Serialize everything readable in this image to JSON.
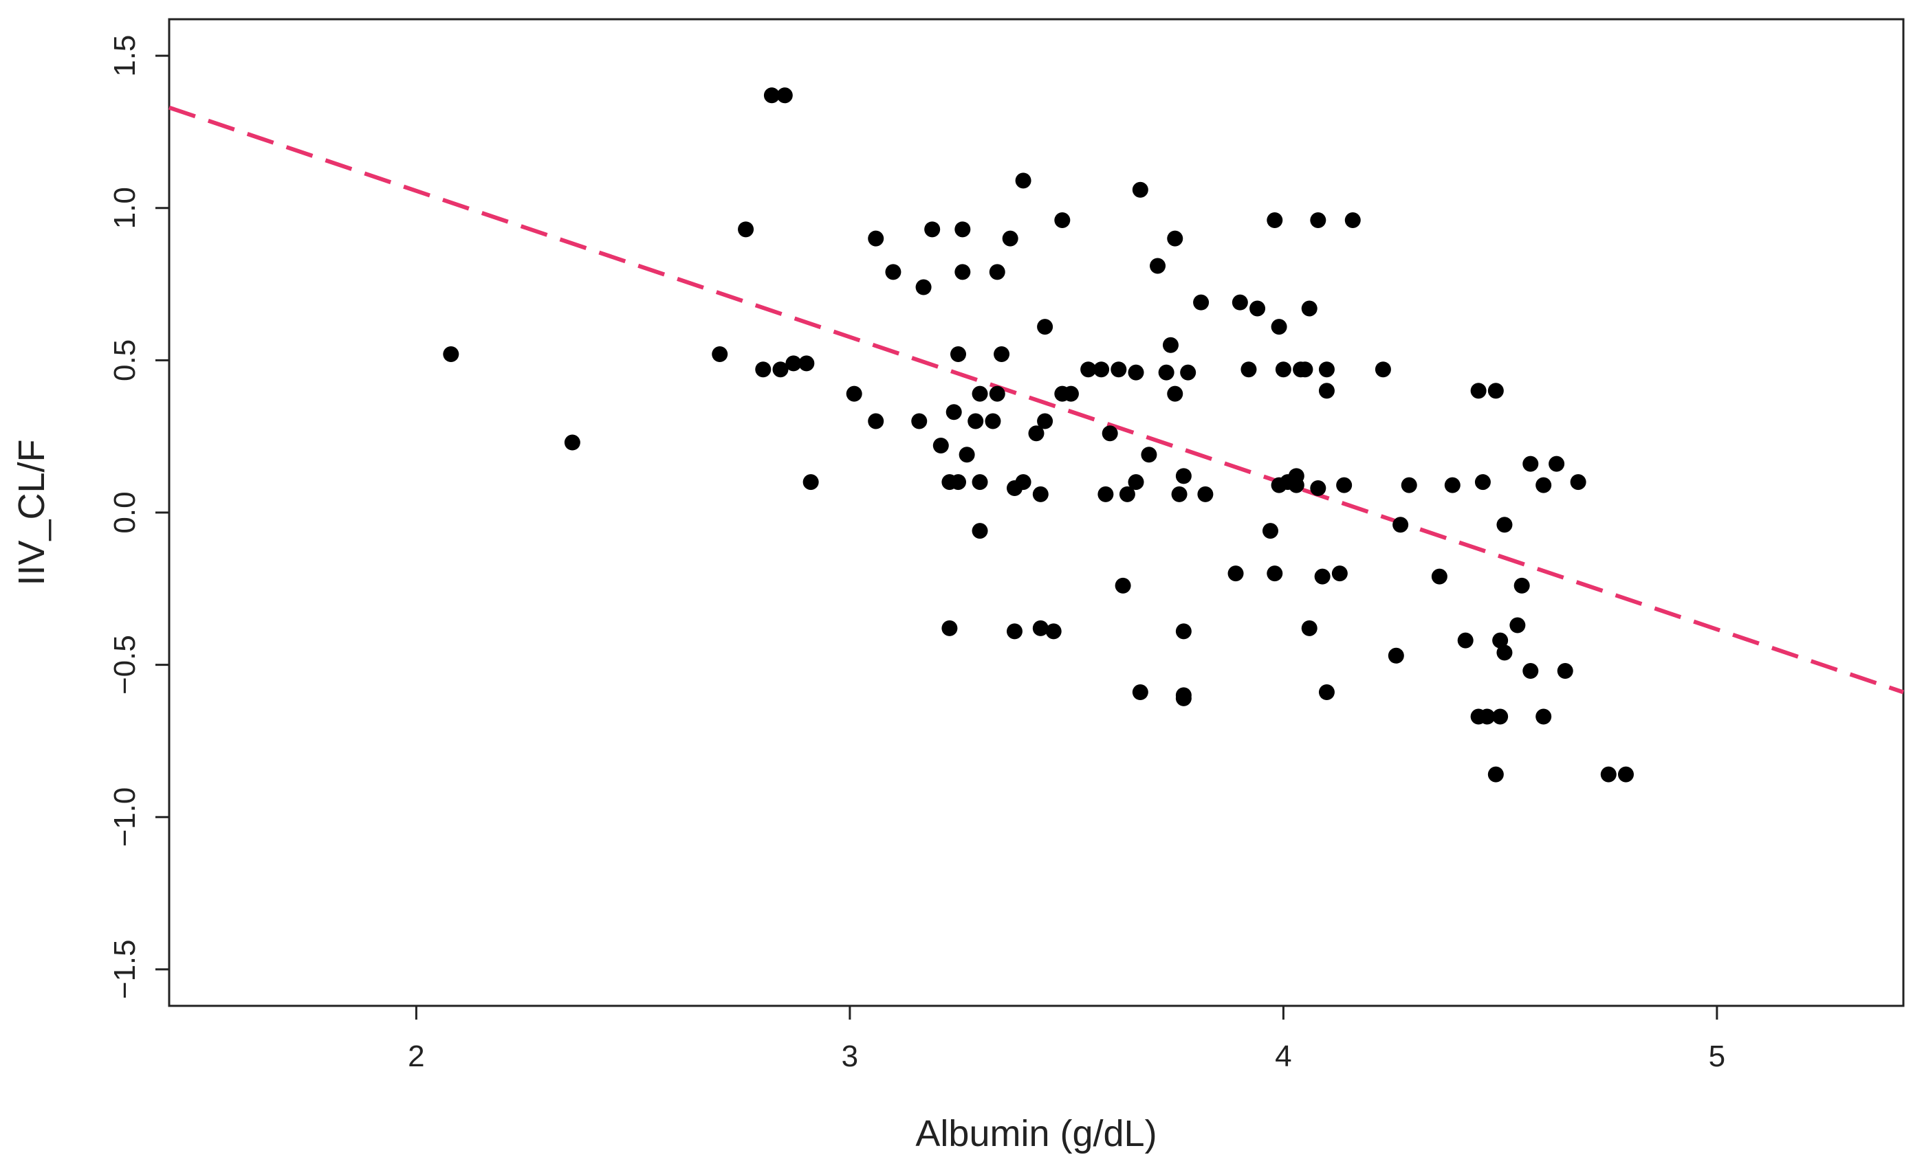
{
  "chart_data": {
    "type": "scatter",
    "title": "",
    "xlabel": "Albumin (g/dL)",
    "ylabel": "IIV_CL/F",
    "xlim": [
      1.43,
      5.43
    ],
    "ylim": [
      -1.62,
      1.62
    ],
    "xticks": [
      2,
      3,
      4,
      5
    ],
    "xtick_labels": [
      "2",
      "3",
      "4",
      "5"
    ],
    "yticks": [
      -1.5,
      -1.0,
      -0.5,
      0.0,
      0.5,
      1.0,
      1.5
    ],
    "ytick_labels": [
      "-1.5",
      "-1.0",
      "-0.5",
      "0.0",
      "0.5",
      "1.0",
      "1.5"
    ],
    "grid": false,
    "legend": "none",
    "colors": {
      "points": "#000000",
      "trend_line": "#e8336c",
      "axes": "#222222"
    },
    "series": [
      {
        "marker": "filled-circle",
        "points": [
          [
            2.08,
            0.52
          ],
          [
            2.36,
            0.23
          ],
          [
            2.7,
            0.52
          ],
          [
            2.76,
            0.93
          ],
          [
            2.8,
            0.47
          ],
          [
            2.82,
            1.37
          ],
          [
            2.85,
            1.37
          ],
          [
            2.84,
            0.47
          ],
          [
            2.87,
            0.49
          ],
          [
            2.9,
            0.49
          ],
          [
            2.91,
            0.1
          ],
          [
            3.01,
            0.39
          ],
          [
            3.06,
            0.9
          ],
          [
            3.06,
            0.3
          ],
          [
            3.1,
            0.79
          ],
          [
            3.16,
            0.3
          ],
          [
            3.17,
            0.74
          ],
          [
            3.19,
            0.93
          ],
          [
            3.21,
            0.22
          ],
          [
            3.23,
            0.1
          ],
          [
            3.23,
            -0.38
          ],
          [
            3.24,
            0.33
          ],
          [
            3.25,
            0.52
          ],
          [
            3.25,
            0.1
          ],
          [
            3.26,
            0.93
          ],
          [
            3.26,
            0.79
          ],
          [
            3.27,
            0.19
          ],
          [
            3.29,
            0.3
          ],
          [
            3.3,
            0.39
          ],
          [
            3.3,
            0.1
          ],
          [
            3.3,
            -0.06
          ],
          [
            3.33,
            0.3
          ],
          [
            3.34,
            0.79
          ],
          [
            3.34,
            0.39
          ],
          [
            3.35,
            0.52
          ],
          [
            3.37,
            0.9
          ],
          [
            3.38,
            0.08
          ],
          [
            3.38,
            -0.39
          ],
          [
            3.4,
            1.09
          ],
          [
            3.4,
            0.1
          ],
          [
            3.43,
            0.26
          ],
          [
            3.45,
            0.61
          ],
          [
            3.45,
            0.3
          ],
          [
            3.44,
            0.06
          ],
          [
            3.44,
            -0.38
          ],
          [
            3.47,
            -0.39
          ],
          [
            3.49,
            0.96
          ],
          [
            3.49,
            0.39
          ],
          [
            3.51,
            0.39
          ],
          [
            3.55,
            0.47
          ],
          [
            3.58,
            0.47
          ],
          [
            3.6,
            0.26
          ],
          [
            3.59,
            0.06
          ],
          [
            3.62,
            0.47
          ],
          [
            3.63,
            -0.24
          ],
          [
            3.64,
            0.06
          ],
          [
            3.66,
            0.46
          ],
          [
            3.66,
            0.1
          ],
          [
            3.67,
            1.06
          ],
          [
            3.67,
            -0.59
          ],
          [
            3.69,
            0.19
          ],
          [
            3.71,
            0.81
          ],
          [
            3.73,
            0.46
          ],
          [
            3.74,
            0.55
          ],
          [
            3.75,
            0.9
          ],
          [
            3.75,
            0.39
          ],
          [
            3.76,
            0.06
          ],
          [
            3.77,
            0.12
          ],
          [
            3.77,
            -0.39
          ],
          [
            3.78,
            0.46
          ],
          [
            3.77,
            -0.6
          ],
          [
            3.77,
            -0.61
          ],
          [
            3.81,
            0.69
          ],
          [
            3.82,
            0.06
          ],
          [
            3.89,
            -0.2
          ],
          [
            3.9,
            0.69
          ],
          [
            3.92,
            0.47
          ],
          [
            3.94,
            0.67
          ],
          [
            3.97,
            -0.06
          ],
          [
            3.98,
            0.96
          ],
          [
            3.98,
            -0.2
          ],
          [
            3.99,
            0.61
          ],
          [
            3.99,
            0.09
          ],
          [
            4.0,
            0.47
          ],
          [
            4.01,
            0.1
          ],
          [
            4.03,
            0.12
          ],
          [
            4.03,
            0.09
          ],
          [
            4.04,
            0.47
          ],
          [
            4.05,
            0.47
          ],
          [
            4.06,
            0.67
          ],
          [
            4.06,
            -0.38
          ],
          [
            4.08,
            0.96
          ],
          [
            4.08,
            0.08
          ],
          [
            4.09,
            -0.21
          ],
          [
            4.1,
            -0.59
          ],
          [
            4.1,
            0.47
          ],
          [
            4.1,
            0.4
          ],
          [
            4.13,
            -0.2
          ],
          [
            4.14,
            0.09
          ],
          [
            4.16,
            0.96
          ],
          [
            4.23,
            0.47
          ],
          [
            4.26,
            -0.47
          ],
          [
            4.27,
            -0.04
          ],
          [
            4.29,
            0.09
          ],
          [
            4.36,
            -0.21
          ],
          [
            4.39,
            0.09
          ],
          [
            4.42,
            -0.42
          ],
          [
            4.45,
            0.4
          ],
          [
            4.45,
            -0.67
          ],
          [
            4.46,
            0.1
          ],
          [
            4.47,
            -0.67
          ],
          [
            4.49,
            -0.86
          ],
          [
            4.49,
            0.4
          ],
          [
            4.5,
            -0.67
          ],
          [
            4.5,
            -0.42
          ],
          [
            4.51,
            -0.04
          ],
          [
            4.51,
            -0.46
          ],
          [
            4.54,
            -0.37
          ],
          [
            4.55,
            -0.24
          ],
          [
            4.57,
            -0.52
          ],
          [
            4.57,
            0.16
          ],
          [
            4.6,
            0.09
          ],
          [
            4.6,
            -0.67
          ],
          [
            4.63,
            0.16
          ],
          [
            4.65,
            -0.52
          ],
          [
            4.68,
            0.1
          ],
          [
            4.75,
            -0.86
          ],
          [
            4.79,
            -0.86
          ]
        ]
      }
    ],
    "trend_line": {
      "style": "dashed",
      "x": [
        1.43,
        5.43
      ],
      "y": [
        1.33,
        -0.59
      ]
    }
  }
}
